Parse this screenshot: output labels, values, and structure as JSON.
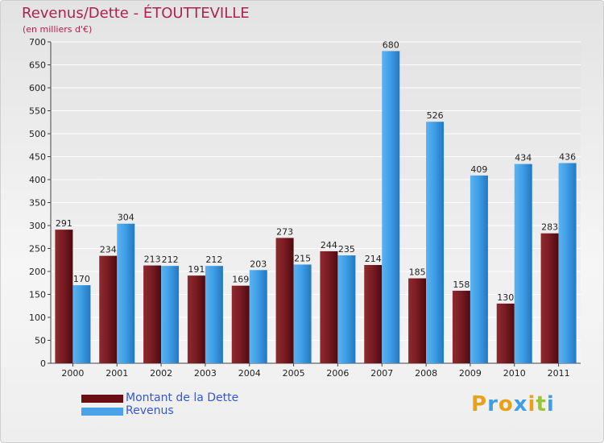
{
  "chart_data": {
    "type": "bar",
    "title": "Revenus/Dette - ÉTOUTTEVILLE",
    "subtitle": "(en milliers d'€)",
    "xlabel": "",
    "ylabel": "",
    "ylim": [
      0,
      700
    ],
    "yticks": [
      0,
      50,
      100,
      150,
      200,
      250,
      300,
      350,
      400,
      450,
      500,
      550,
      600,
      650,
      700
    ],
    "grid": true,
    "legend_position": "bottom-left",
    "categories": [
      "2000",
      "2001",
      "2002",
      "2003",
      "2004",
      "2005",
      "2006",
      "2007",
      "2008",
      "2009",
      "2010",
      "2011"
    ],
    "series": [
      {
        "name": "Montant de la Dette",
        "color": "#7a1d24",
        "values": [
          291,
          234,
          213,
          191,
          169,
          273,
          244,
          214,
          185,
          158,
          130,
          283
        ]
      },
      {
        "name": "Revenus",
        "color": "#3f9fe6",
        "values": [
          170,
          304,
          212,
          212,
          203,
          215,
          235,
          680,
          526,
          409,
          434,
          436
        ]
      }
    ]
  },
  "legend": {
    "items": [
      {
        "label": "Montant de la Dette",
        "color": "#6b0f14"
      },
      {
        "label": "Revenus",
        "color": "#4aa3e8"
      }
    ]
  },
  "logo": {
    "letters": [
      {
        "ch": "P",
        "color": "#e8a21a"
      },
      {
        "ch": "r",
        "color": "#3f9fe6"
      },
      {
        "ch": "o",
        "color": "#e8a21a"
      },
      {
        "ch": "x",
        "color": "#3f9fe6"
      },
      {
        "ch": "i",
        "color": "#e8a21a"
      },
      {
        "ch": "t",
        "color": "#9bc43a"
      },
      {
        "ch": "i",
        "color": "#3f9fe6"
      }
    ]
  }
}
